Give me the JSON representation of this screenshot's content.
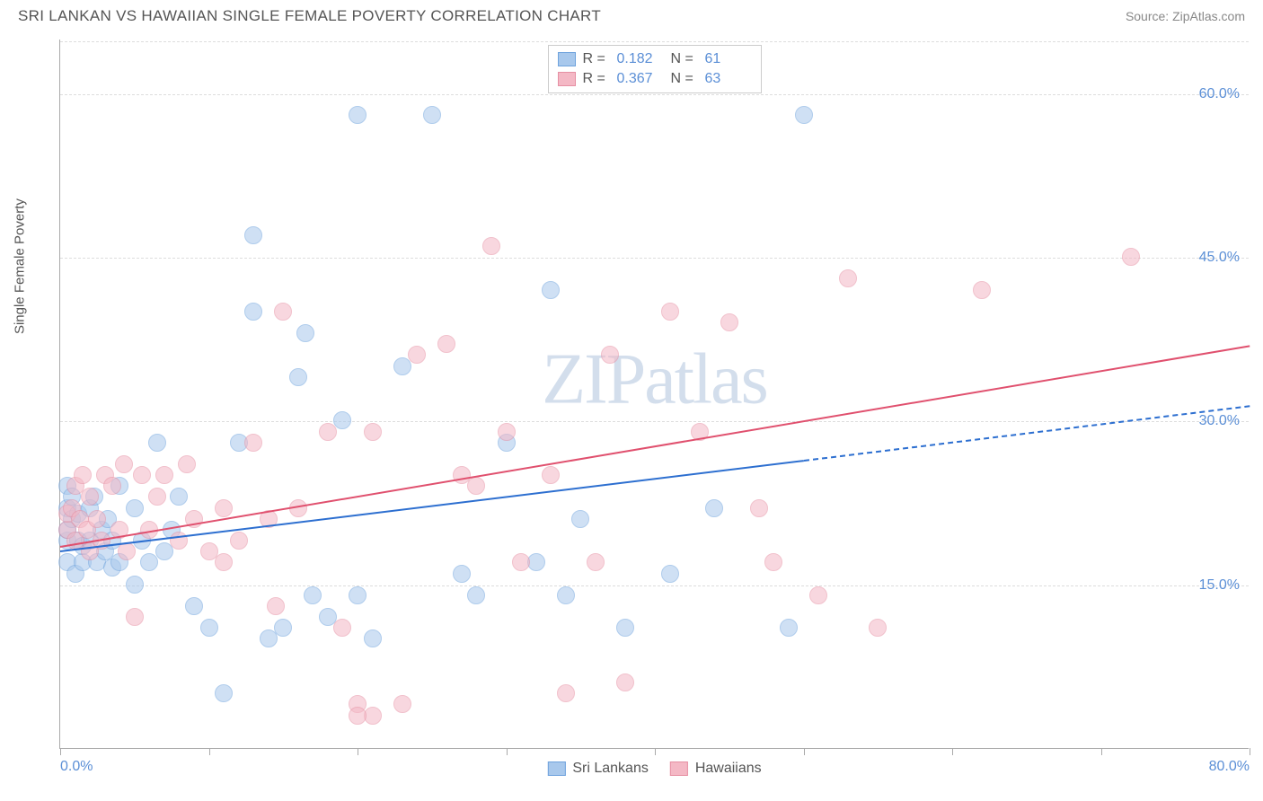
{
  "header": {
    "title": "SRI LANKAN VS HAWAIIAN SINGLE FEMALE POVERTY CORRELATION CHART",
    "source": "Source: ZipAtlas.com"
  },
  "chart": {
    "type": "scatter",
    "ylabel": "Single Female Poverty",
    "watermark": "ZIPatlas",
    "background_color": "#ffffff",
    "grid_color": "#dddddd",
    "axis_color": "#aaaaaa",
    "tick_label_color": "#5b8fd6",
    "label_color": "#555555",
    "title_fontsize": 17,
    "label_fontsize": 15,
    "tick_fontsize": 16,
    "xlim": [
      0,
      80
    ],
    "ylim": [
      0,
      65
    ],
    "xticks": [
      0,
      10,
      20,
      30,
      40,
      50,
      60,
      70,
      80
    ],
    "xtick_labels": {
      "0": "0.0%",
      "80": "80.0%"
    },
    "yticks": [
      15,
      30,
      45,
      60
    ],
    "ytick_labels": {
      "15": "15.0%",
      "30": "30.0%",
      "45": "45.0%",
      "60": "60.0%"
    },
    "marker_radius": 10,
    "marker_opacity": 0.55,
    "series": [
      {
        "name": "Sri Lankans",
        "color_fill": "#a8c8ec",
        "color_stroke": "#6fa3dd",
        "r_value": "0.182",
        "n_value": "61",
        "trend": {
          "x1": 0,
          "y1": 18.2,
          "x2": 50,
          "y2": 26.5,
          "x2_ext": 80,
          "y2_ext": 31.5,
          "color": "#2d6fd0",
          "width": 2
        },
        "points": [
          [
            0.5,
            17
          ],
          [
            0.5,
            19
          ],
          [
            0.5,
            20
          ],
          [
            0.5,
            22
          ],
          [
            0.5,
            24
          ],
          [
            0.8,
            21
          ],
          [
            0.8,
            23
          ],
          [
            1,
            16
          ],
          [
            1.2,
            19
          ],
          [
            1.2,
            21.5
          ],
          [
            1.5,
            17
          ],
          [
            1.5,
            18.5
          ],
          [
            2,
            19
          ],
          [
            2,
            22
          ],
          [
            2.3,
            23
          ],
          [
            2.5,
            17
          ],
          [
            2.8,
            20
          ],
          [
            3,
            18
          ],
          [
            3.2,
            21
          ],
          [
            3.5,
            16.5
          ],
          [
            3.5,
            19
          ],
          [
            4,
            17
          ],
          [
            4,
            24
          ],
          [
            5,
            15
          ],
          [
            5,
            22
          ],
          [
            5.5,
            19
          ],
          [
            6,
            17
          ],
          [
            6.5,
            28
          ],
          [
            7,
            18
          ],
          [
            7.5,
            20
          ],
          [
            8,
            23
          ],
          [
            9,
            13
          ],
          [
            10,
            11
          ],
          [
            11,
            5
          ],
          [
            12,
            28
          ],
          [
            13,
            47
          ],
          [
            13,
            40
          ],
          [
            14,
            10
          ],
          [
            15,
            11
          ],
          [
            16,
            34
          ],
          [
            16.5,
            38
          ],
          [
            17,
            14
          ],
          [
            18,
            12
          ],
          [
            19,
            30
          ],
          [
            20,
            14
          ],
          [
            20,
            58
          ],
          [
            21,
            10
          ],
          [
            23,
            35
          ],
          [
            25,
            58
          ],
          [
            27,
            16
          ],
          [
            28,
            14
          ],
          [
            30,
            28
          ],
          [
            32,
            17
          ],
          [
            33,
            42
          ],
          [
            34,
            14
          ],
          [
            35,
            21
          ],
          [
            38,
            11
          ],
          [
            41,
            16
          ],
          [
            44,
            22
          ],
          [
            50,
            58
          ],
          [
            49,
            11
          ]
        ]
      },
      {
        "name": "Hawaiians",
        "color_fill": "#f4b8c5",
        "color_stroke": "#e68fa3",
        "r_value": "0.367",
        "n_value": "63",
        "trend": {
          "x1": 0,
          "y1": 18.6,
          "x2": 80,
          "y2": 37,
          "color": "#e0506e",
          "width": 2
        },
        "points": [
          [
            0.5,
            20
          ],
          [
            0.5,
            21.5
          ],
          [
            0.8,
            22
          ],
          [
            1,
            19
          ],
          [
            1,
            24
          ],
          [
            1.3,
            21
          ],
          [
            1.5,
            25
          ],
          [
            1.8,
            20
          ],
          [
            2,
            18
          ],
          [
            2,
            23
          ],
          [
            2.5,
            21
          ],
          [
            2.8,
            19
          ],
          [
            3,
            25
          ],
          [
            3.5,
            24
          ],
          [
            4,
            20
          ],
          [
            4.3,
            26
          ],
          [
            4.5,
            18
          ],
          [
            5,
            12
          ],
          [
            5.5,
            25
          ],
          [
            6,
            20
          ],
          [
            6.5,
            23
          ],
          [
            7,
            25
          ],
          [
            8,
            19
          ],
          [
            8.5,
            26
          ],
          [
            9,
            21
          ],
          [
            10,
            18
          ],
          [
            11,
            17
          ],
          [
            11,
            22
          ],
          [
            12,
            19
          ],
          [
            13,
            28
          ],
          [
            14,
            21
          ],
          [
            14.5,
            13
          ],
          [
            15,
            40
          ],
          [
            16,
            22
          ],
          [
            18,
            29
          ],
          [
            19,
            11
          ],
          [
            20,
            4
          ],
          [
            21,
            3
          ],
          [
            21,
            29
          ],
          [
            23,
            4
          ],
          [
            24,
            36
          ],
          [
            26,
            37
          ],
          [
            27,
            25
          ],
          [
            28,
            24
          ],
          [
            29,
            46
          ],
          [
            30,
            29
          ],
          [
            31,
            17
          ],
          [
            33,
            25
          ],
          [
            34,
            5
          ],
          [
            36,
            17
          ],
          [
            37,
            36
          ],
          [
            38,
            6
          ],
          [
            41,
            40
          ],
          [
            43,
            29
          ],
          [
            45,
            39
          ],
          [
            47,
            22
          ],
          [
            48,
            17
          ],
          [
            51,
            14
          ],
          [
            53,
            43
          ],
          [
            55,
            11
          ],
          [
            62,
            42
          ],
          [
            72,
            45
          ],
          [
            20,
            3
          ]
        ]
      }
    ],
    "legend_top": {
      "labels": {
        "r": "R  =",
        "n": "N  ="
      }
    },
    "legend_bottom": {
      "items": [
        "Sri Lankans",
        "Hawaiians"
      ]
    }
  }
}
